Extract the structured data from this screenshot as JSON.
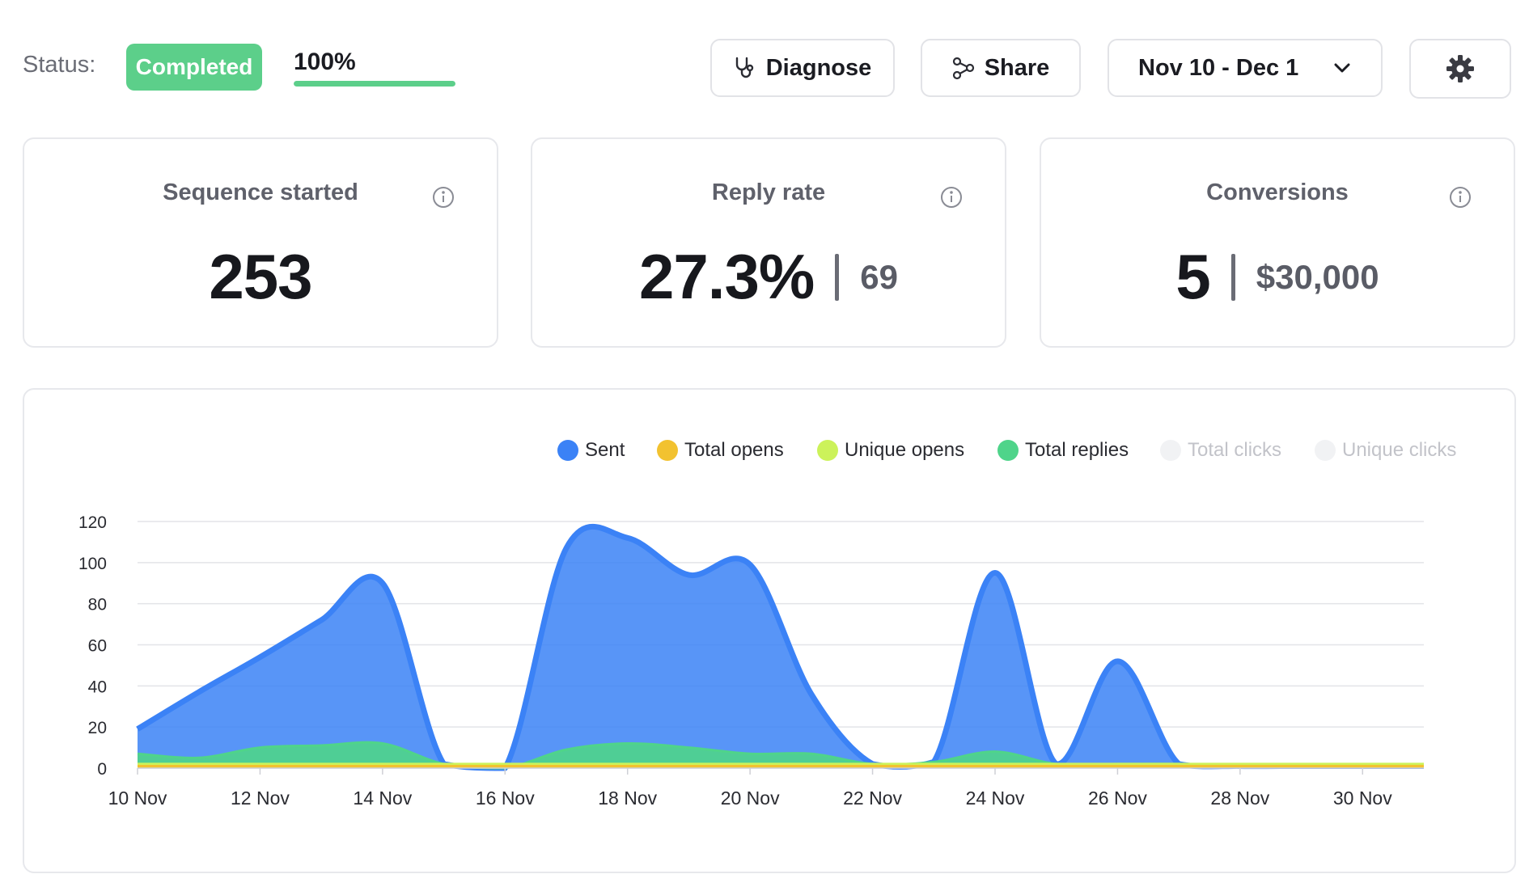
{
  "toolbar": {
    "status_label": "Status:",
    "status_value": "Completed",
    "progress_label": "100%",
    "progress_value": 1.0,
    "diagnose_label": "Diagnose",
    "share_label": "Share",
    "date_range": "Nov 10 - Dec 1",
    "accent_color": "#5ccf8a"
  },
  "stats": [
    {
      "title": "Sequence started",
      "value": "253",
      "sub": ""
    },
    {
      "title": "Reply rate",
      "value": "27.3%",
      "sub": "69"
    },
    {
      "title": "Conversions",
      "value": "5",
      "sub": "$30,000"
    }
  ],
  "legend": [
    {
      "label": "Sent",
      "color": "#3b82f6",
      "active": true
    },
    {
      "label": "Total opens",
      "color": "#f2c230",
      "active": true
    },
    {
      "label": "Unique opens",
      "color": "#ccf25a",
      "active": true
    },
    {
      "label": "Total replies",
      "color": "#4fd48a",
      "active": true
    },
    {
      "label": "Total clicks",
      "color": "#f1f2f4",
      "active": false
    },
    {
      "label": "Unique clicks",
      "color": "#f1f2f4",
      "active": false
    }
  ],
  "chart_data": {
    "type": "area",
    "title": "",
    "xlabel": "",
    "ylabel": "",
    "ylim": [
      0,
      120
    ],
    "yticks": [
      0,
      20,
      40,
      60,
      80,
      100,
      120
    ],
    "x": [
      10,
      11,
      12,
      13,
      14,
      15,
      16,
      17,
      18,
      19,
      20,
      21,
      22,
      23,
      24,
      25,
      26,
      27,
      28,
      29,
      30,
      31
    ],
    "xtick_labels": [
      "10 Nov",
      "12 Nov",
      "14 Nov",
      "16 Nov",
      "18 Nov",
      "20 Nov",
      "22 Nov",
      "24 Nov",
      "26 Nov",
      "28 Nov",
      "30 Nov"
    ],
    "xtick_days": [
      10,
      12,
      14,
      16,
      18,
      20,
      22,
      24,
      26,
      28,
      30
    ],
    "series": [
      {
        "name": "Sent",
        "color": "#3b82f6",
        "values": [
          19,
          37,
          54,
          72,
          90,
          2,
          0,
          107,
          112,
          94,
          99,
          36,
          2,
          3,
          95,
          2,
          52,
          2,
          1,
          1,
          1,
          1
        ]
      },
      {
        "name": "Total replies",
        "color": "#4fd48a",
        "values": [
          7,
          5,
          10,
          11,
          12,
          2,
          0,
          9,
          12,
          10,
          7,
          7,
          2,
          3,
          8,
          2,
          2,
          2,
          1,
          1,
          1,
          1
        ]
      },
      {
        "name": "Unique opens",
        "color": "#ccf25a",
        "values": [
          2,
          2,
          2,
          2,
          2,
          2,
          2,
          2,
          2,
          2,
          2,
          2,
          2,
          2,
          2,
          2,
          2,
          2,
          2,
          2,
          2,
          2
        ]
      },
      {
        "name": "Total opens",
        "color": "#f2c230",
        "values": [
          1,
          1,
          1,
          1,
          1,
          1,
          1,
          1,
          1,
          1,
          1,
          1,
          1,
          1,
          1,
          1,
          1,
          1,
          1,
          1,
          1,
          1
        ]
      }
    ]
  }
}
